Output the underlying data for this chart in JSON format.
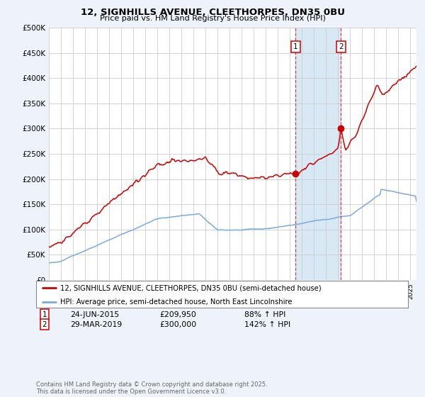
{
  "title": "12, SIGNHILLS AVENUE, CLEETHORPES, DN35 0BU",
  "subtitle": "Price paid vs. HM Land Registry's House Price Index (HPI)",
  "legend_line1": "12, SIGNHILLS AVENUE, CLEETHORPES, DN35 0BU (semi-detached house)",
  "legend_line2": "HPI: Average price, semi-detached house, North East Lincolnshire",
  "annotation1_date": "24-JUN-2015",
  "annotation1_price": "£209,950",
  "annotation1_hpi": "88% ↑ HPI",
  "annotation2_date": "29-MAR-2019",
  "annotation2_price": "£300,000",
  "annotation2_hpi": "142% ↑ HPI",
  "footnote": "Contains HM Land Registry data © Crown copyright and database right 2025.\nThis data is licensed under the Open Government Licence v3.0.",
  "red_color": "#cc0000",
  "blue_color": "#7aaadd",
  "bg_color": "#eef2fa",
  "plot_bg": "#ffffff",
  "shade_color": "#d8e8f4",
  "grid_color": "#cccccc",
  "ylim_max": 500000,
  "sale1_year": 2015.48,
  "sale1_price": 209950,
  "sale2_year": 2019.24,
  "sale2_price": 300000
}
